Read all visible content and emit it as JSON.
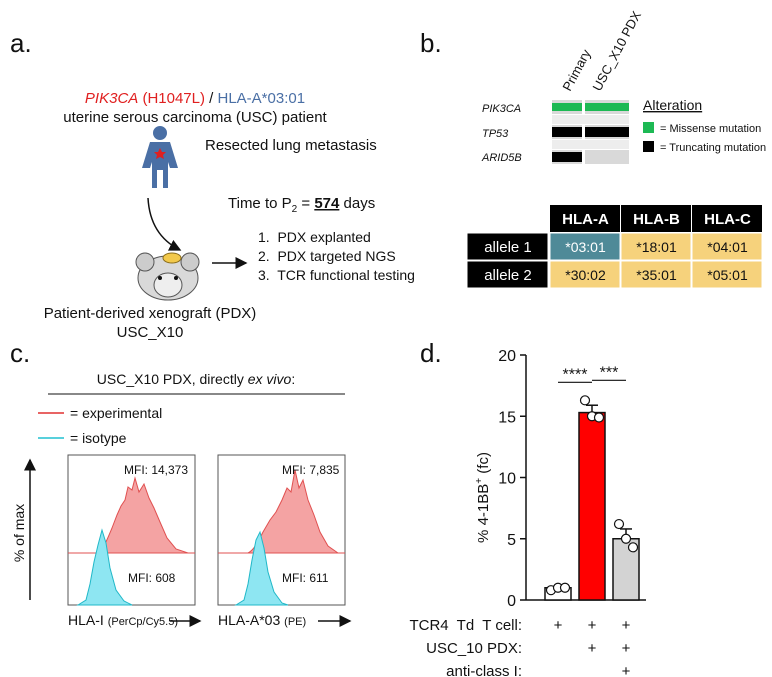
{
  "panel_a": {
    "label": "a.",
    "gene": "PIK3CA",
    "mutation": " (H1047L)",
    "separator": " / ",
    "hla": "HLA-A*03:01",
    "patient": "uterine serous carcinoma (USC) patient",
    "resection": "Resected lung metastasis",
    "time": {
      "prefix": "Time to P",
      "subscript": "2",
      "middle": " = ",
      "days": "574",
      "unit": " days"
    },
    "steps": [
      "1.  PDX explanted",
      "2.  PDX targeted NGS",
      "3.  TCR functional testing"
    ],
    "model": "Patient-derived xenograft (PDX)",
    "model_id": "USC_X10"
  },
  "panel_b": {
    "label": "b.",
    "samples": [
      "Primary",
      "USC_X10 PDX"
    ],
    "genes": [
      "PIK3CA",
      "TP53",
      "ARID5B"
    ],
    "legend": {
      "title": "Alteration",
      "items": [
        "= Missense mutation",
        "= Truncating mutation"
      ]
    },
    "hla_table": {
      "header": [
        "HLA-A",
        "HLA-B",
        "HLA-C"
      ],
      "rows": [
        {
          "allele": "allele 1",
          "values": [
            "*03:01",
            "*18:01",
            "*04:01"
          ]
        },
        {
          "allele": "allele 2",
          "values": [
            "*30:02",
            "*35:01",
            "*05:01"
          ]
        }
      ]
    }
  },
  "panel_c": {
    "label": "c.",
    "title": "USC_X10 PDX, directly ",
    "title_italic": "ex vivo",
    "title_end": ":",
    "legend": [
      "= experimental",
      "= isotype"
    ],
    "y_label": "% of max",
    "plots": [
      {
        "marker": "HLA-I ",
        "fluor": "(PerCp/Cy5.5)",
        "mfi_experimental": "MFI: 14,373",
        "mfi_isotype": "MFI: 608"
      },
      {
        "marker": "HLA-A*03 ",
        "fluor": "(PE)",
        "mfi_experimental": "MFI: 7,835",
        "mfi_isotype": "MFI: 611"
      }
    ]
  },
  "panel_d_label": "d.",
  "chart_data": {
    "type": "bar",
    "y_label": [
      "% 4-1BB",
      "+",
      " (fc)"
    ],
    "values": [
      1.0,
      15.3,
      5.0
    ],
    "errors": [
      0.1,
      0.6,
      0.8
    ],
    "points": [
      [
        0.8,
        1.0,
        1.0
      ],
      [
        16.3,
        15.0,
        14.9
      ],
      [
        6.2,
        5.0,
        4.3
      ]
    ],
    "colors": [
      "#ffffff",
      "#ff0000",
      "#d3d3d3"
    ],
    "ylim": [
      0,
      20
    ],
    "yticks": [
      0,
      5,
      10,
      15,
      20
    ],
    "significance": [
      "****",
      "***"
    ],
    "conditions": [
      {
        "label": "TCR4  Td  T cell:",
        "marks": [
          "+",
          "+",
          "+"
        ]
      },
      {
        "label": "USC_10 PDX:",
        "marks": [
          null,
          "+",
          "+"
        ]
      },
      {
        "label": "anti-class I:",
        "marks": [
          null,
          null,
          "+"
        ]
      }
    ]
  }
}
